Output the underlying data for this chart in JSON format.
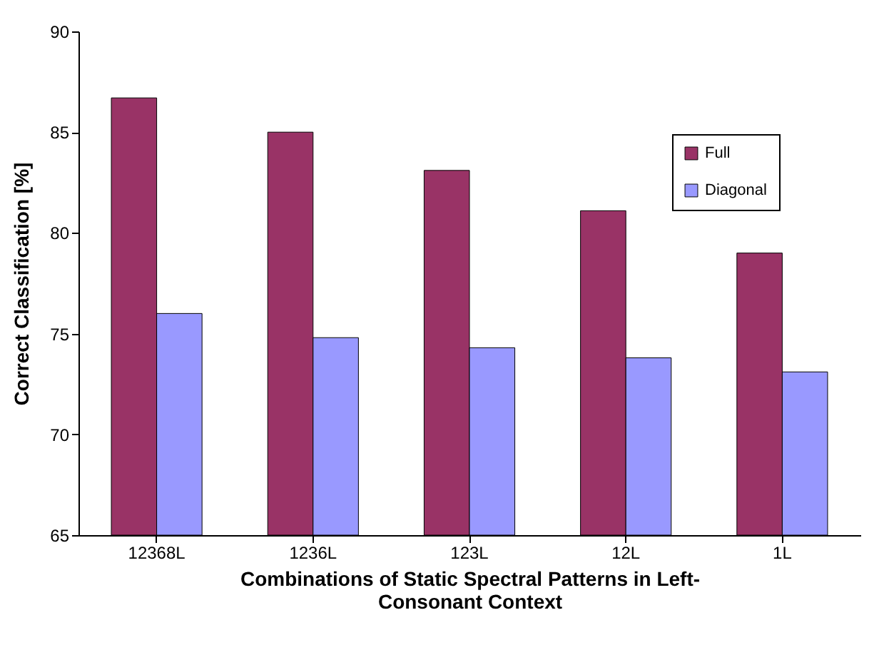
{
  "chart_data": {
    "type": "bar",
    "xlabel": "Combinations of Static Spectral Patterns in Left-Consonant Context",
    "ylabel": "Correct Classification [%]",
    "categories": [
      "12368L",
      "1236L",
      "123L",
      "12L",
      "1L"
    ],
    "series": [
      {
        "name": "Full",
        "color": "#993366",
        "values": [
          86.7,
          85.0,
          83.1,
          81.1,
          79.0
        ]
      },
      {
        "name": "Diagonal",
        "color": "#9999ff",
        "values": [
          76.0,
          74.8,
          74.3,
          73.8,
          73.1
        ]
      }
    ],
    "ylim": [
      65,
      90
    ],
    "yticks": [
      65,
      70,
      75,
      80,
      85,
      90
    ],
    "grid": false,
    "legend": "top right"
  }
}
